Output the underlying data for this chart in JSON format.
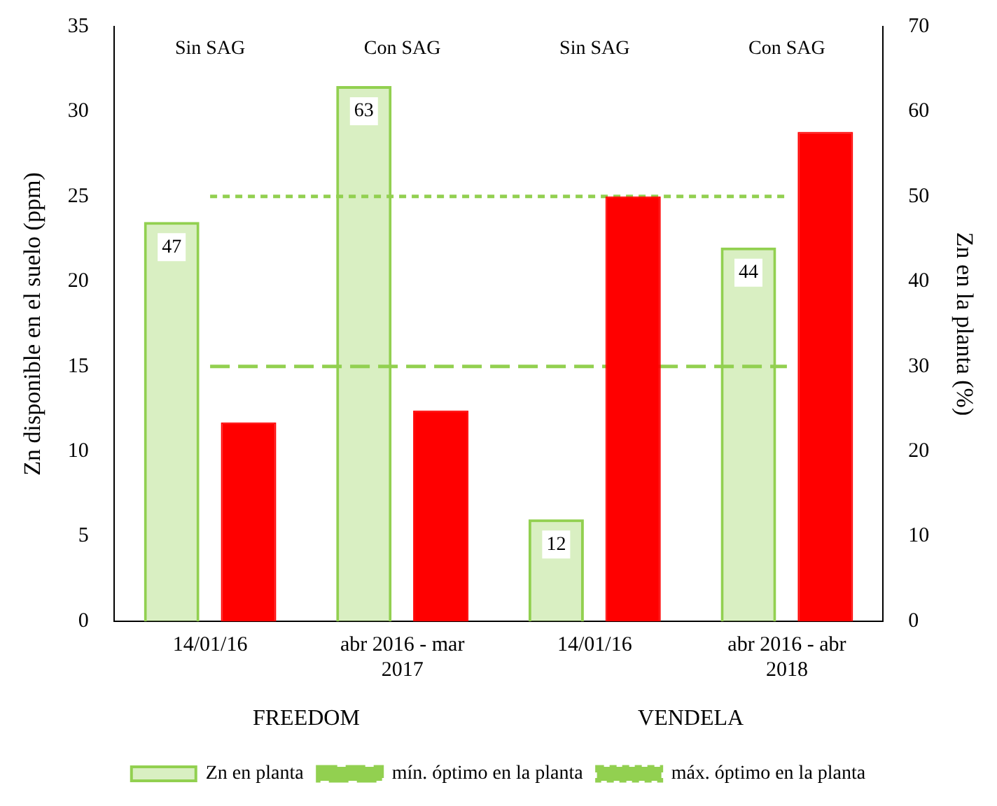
{
  "chart_data": {
    "type": "bar",
    "ylabel": "Zn disponible en el suelo (ppm)",
    "y2label": "Zn en la planta (%)",
    "categories": [
      "14/01/16",
      "abr 2016 - mar 2017",
      "14/01/16",
      "abr 2016 - abr 2018"
    ],
    "series": [
      {
        "name": "Zn en planta",
        "color": "#92d050",
        "axis": "y2",
        "values": [
          47,
          63,
          12,
          44
        ],
        "value_labels": [
          "47",
          "63",
          "12",
          "44"
        ]
      },
      {
        "color": "#ff0000",
        "axis": "y",
        "values": [
          11.7,
          12.4,
          25,
          28.8
        ]
      }
    ],
    "ylim": [
      0,
      35
    ],
    "yticks": [
      0,
      5,
      10,
      15,
      20,
      25,
      30,
      35
    ],
    "y2lim": [
      0,
      70
    ],
    "y2ticks": [
      0,
      10,
      20,
      30,
      40,
      50,
      60,
      70
    ],
    "ref_lines": [
      {
        "axis": "y2",
        "value": 30,
        "label": "mín. óptimo en la planta",
        "color": "#92d050",
        "line_style": "dashed"
      },
      {
        "axis": "y2",
        "value": 50,
        "label": "máx. óptimo en la planta",
        "color": "#92d050",
        "line_style": "dotted"
      }
    ],
    "annotations": [
      "Sin SAG",
      "Con SAG",
      "Sin SAG",
      "Con SAG",
      "FREEDOM",
      "VENDELA"
    ],
    "grid": false,
    "legend": "bottom"
  }
}
